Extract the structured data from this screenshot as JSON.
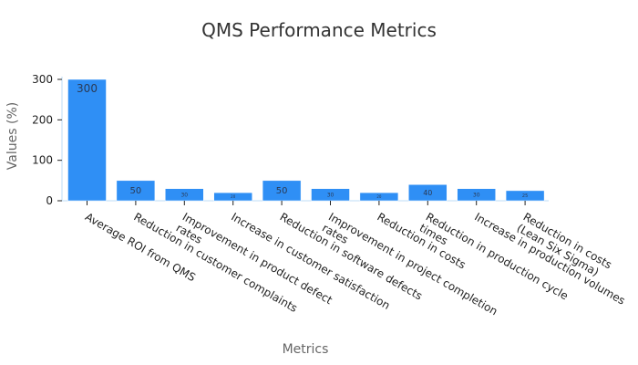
{
  "chart_data": {
    "type": "bar",
    "title": "QMS Performance Metrics",
    "xlabel": "Metrics",
    "ylabel": "Values (%)",
    "ylim": [
      0,
      300
    ],
    "yticks": [
      0,
      100,
      200,
      300
    ],
    "grid": false,
    "bar_color": "#2f8ff5",
    "categories": [
      [
        "Average ROI from QMS"
      ],
      [
        "Reduction in customer complaints"
      ],
      [
        "Improvement in product defect",
        "rates"
      ],
      [
        "Increase in customer satisfaction"
      ],
      [
        "Reduction in software defects"
      ],
      [
        "Improvement in project completion",
        "rates"
      ],
      [
        "Reduction in costs"
      ],
      [
        "Reduction in production cycle",
        "times"
      ],
      [
        "Increase in production volumes"
      ],
      [
        "Reduction in costs",
        "(Lean Six Sigma)"
      ]
    ],
    "values": [
      300,
      50,
      30,
      20,
      50,
      30,
      20,
      40,
      30,
      25
    ]
  }
}
